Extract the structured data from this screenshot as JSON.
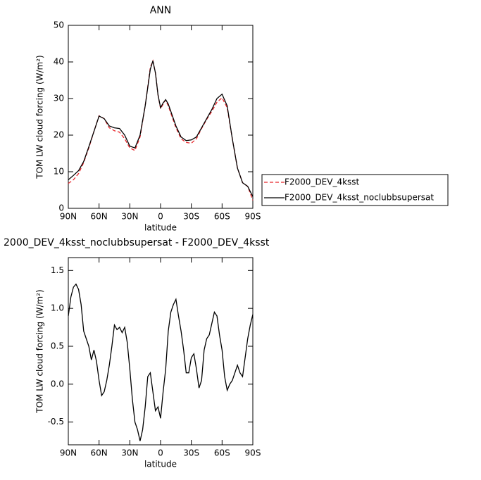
{
  "chart_data": [
    {
      "type": "line",
      "title": "ANN",
      "x_label": "latitude",
      "y_label": "TOM LW cloud forcing (W/m²)",
      "x": [
        90,
        85,
        80,
        75,
        70,
        65,
        60,
        55,
        50,
        45,
        40,
        35,
        30,
        25,
        20,
        15,
        10,
        7.5,
        5,
        2.5,
        0,
        -2.5,
        -5,
        -7.5,
        -10,
        -15,
        -20,
        -25,
        -30,
        -35,
        -40,
        -45,
        -50,
        -55,
        -60,
        -65,
        -70,
        -75,
        -80,
        -85,
        -90
      ],
      "series": [
        {
          "name": "F2000_DEV_4ksst",
          "color": "#e8262b",
          "dash": "dashed",
          "values": [
            6.8,
            7.8,
            9.5,
            12.5,
            16.5,
            21,
            25.3,
            24.5,
            22,
            21.2,
            20.8,
            19,
            16.5,
            15.8,
            19.5,
            28,
            38.5,
            40.3,
            37,
            31,
            27.2,
            28.5,
            29.6,
            28,
            26,
            22,
            19,
            18,
            17.8,
            19,
            21.8,
            24.3,
            26.5,
            29,
            30.2,
            27.5,
            19,
            11,
            7,
            6,
            2.2
          ]
        },
        {
          "name": "F2000_DEV_4ksst_noclubbsupersat",
          "color": "#000000",
          "dash": "solid",
          "values": [
            7.8,
            9,
            10.3,
            12.8,
            16.8,
            21,
            25.2,
            24.5,
            22.5,
            22,
            21.8,
            20,
            17,
            16.5,
            20,
            28,
            38,
            40.3,
            37,
            31,
            27.5,
            28.8,
            29.7,
            28.5,
            26.5,
            22.5,
            19.5,
            18.5,
            18.7,
            19.5,
            22,
            24.5,
            27,
            30,
            31.2,
            28,
            19,
            11,
            7,
            6,
            3.2
          ]
        }
      ],
      "xlim": [
        90,
        -90
      ],
      "xticks": [
        {
          "value": 90,
          "label": "90N"
        },
        {
          "value": 60,
          "label": "60N"
        },
        {
          "value": 30,
          "label": "30N"
        },
        0,
        {
          "value": -30,
          "label": "30S"
        },
        {
          "value": -60,
          "label": "60S"
        },
        {
          "value": -90,
          "label": "90S"
        }
      ],
      "ylim": [
        0,
        50
      ],
      "yticks": [
        0,
        10,
        20,
        30,
        40,
        50
      ],
      "legend": "right"
    },
    {
      "type": "line",
      "title": "2000_DEV_4ksst_noclubbsupersat - F2000_DEV_4ksst",
      "x_label": "latitude",
      "y_label": "TOM LW cloud forcing (W/m²)",
      "x": [
        90,
        87.5,
        85,
        82.5,
        80,
        77.5,
        75,
        72.5,
        70,
        67.5,
        65,
        62.5,
        60,
        57.5,
        55,
        52.5,
        50,
        47.5,
        45,
        42.5,
        40,
        37.5,
        35,
        32.5,
        30,
        27.5,
        25,
        22.5,
        20,
        17.5,
        15,
        12.5,
        10,
        7.5,
        5,
        2.5,
        0,
        -2.5,
        -5,
        -7.5,
        -10,
        -12.5,
        -15,
        -17.5,
        -20,
        -22.5,
        -25,
        -27.5,
        -30,
        -32.5,
        -35,
        -37.5,
        -40,
        -42.5,
        -45,
        -47.5,
        -50,
        -52.5,
        -55,
        -57.5,
        -60,
        -62.5,
        -65,
        -67.5,
        -70,
        -72.5,
        -75,
        -77.5,
        -80,
        -82.5,
        -85,
        -87.5,
        -90
      ],
      "series": [
        {
          "color": "#000000",
          "dash": "solid",
          "values": [
            0.9,
            1.15,
            1.28,
            1.32,
            1.25,
            1.05,
            0.7,
            0.6,
            0.5,
            0.32,
            0.45,
            0.3,
            0.05,
            -0.15,
            -0.1,
            0.05,
            0.25,
            0.5,
            0.78,
            0.72,
            0.75,
            0.68,
            0.75,
            0.55,
            0.2,
            -0.2,
            -0.5,
            -0.6,
            -0.75,
            -0.6,
            -0.3,
            0.1,
            0.15,
            -0.1,
            -0.35,
            -0.3,
            -0.45,
            -0.1,
            0.2,
            0.7,
            0.95,
            1.05,
            1.12,
            0.9,
            0.7,
            0.45,
            0.15,
            0.15,
            0.35,
            0.4,
            0.2,
            -0.05,
            0.05,
            0.45,
            0.6,
            0.65,
            0.8,
            0.95,
            0.9,
            0.65,
            0.45,
            0.1,
            -0.08,
            0.0,
            0.05,
            0.15,
            0.25,
            0.15,
            0.1,
            0.35,
            0.6,
            0.78,
            0.92
          ]
        }
      ],
      "xlim": [
        90,
        -90
      ],
      "xticks": [
        {
          "value": 90,
          "label": "90N"
        },
        {
          "value": 60,
          "label": "60N"
        },
        {
          "value": 30,
          "label": "30N"
        },
        0,
        {
          "value": -30,
          "label": "30S"
        },
        {
          "value": -60,
          "label": "60S"
        },
        {
          "value": -90,
          "label": "90S"
        }
      ],
      "ylim": [
        -0.8,
        1.67
      ],
      "yticks": [
        -0.5,
        {
          "value": 0,
          "label": "0.0"
        },
        0.5,
        {
          "value": 1,
          "label": "1.0"
        },
        1.5
      ]
    }
  ]
}
